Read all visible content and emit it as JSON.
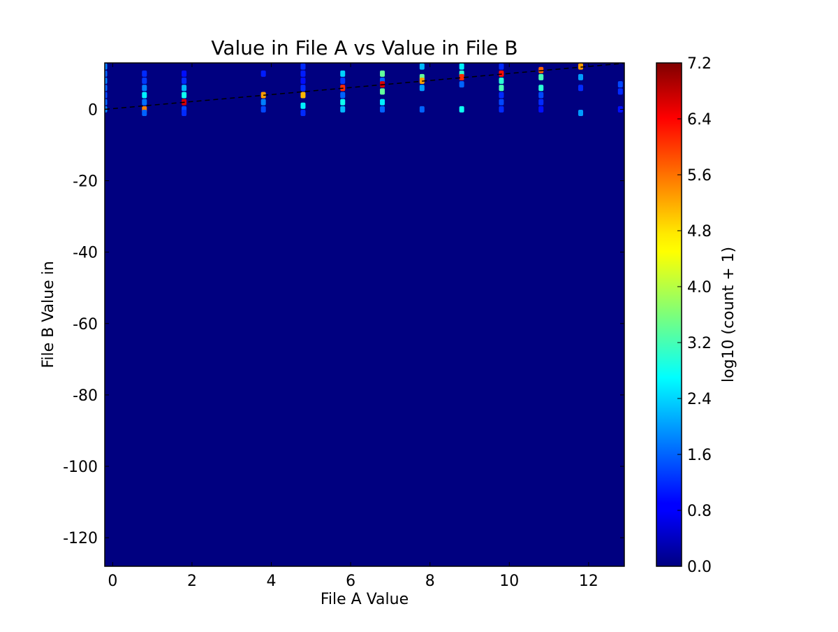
{
  "chart_data": {
    "type": "heatmap",
    "title": "Value in File A vs Value in File B",
    "xlabel": "File A Value",
    "ylabel": "File B Value in",
    "xlim": [
      -0.2,
      12.9
    ],
    "ylim": [
      -128,
      13
    ],
    "x_ticks": [
      0,
      2,
      4,
      6,
      8,
      10,
      12
    ],
    "y_ticks": [
      0,
      -20,
      -40,
      -60,
      -80,
      -100,
      -120
    ],
    "x_tick_labels": [
      "0",
      "2",
      "4",
      "6",
      "8",
      "10",
      "12"
    ],
    "y_tick_labels": [
      "0",
      "-20",
      "-40",
      "-60",
      "-80",
      "-100",
      "-120"
    ],
    "background_value": 0.0,
    "colorbar": {
      "label": "log10 (count + 1)",
      "min": 0.0,
      "max": 7.2,
      "ticks": [
        0.0,
        0.8,
        1.6,
        2.4,
        3.2,
        4.0,
        4.8,
        5.6,
        6.4,
        7.2
      ],
      "tick_labels": [
        "0.0",
        "0.8",
        "1.6",
        "2.4",
        "3.2",
        "4.0",
        "4.8",
        "5.6",
        "6.4",
        "7.2"
      ],
      "colormap": "jet"
    },
    "reference_line": {
      "style": "dashed",
      "color": "#000000",
      "x": [
        -0.2,
        12.9
      ],
      "y": [
        0,
        12.9
      ]
    },
    "cells": [
      {
        "x": -0.2,
        "y": 12,
        "v": 1.8
      },
      {
        "x": -0.2,
        "y": 10,
        "v": 1.6
      },
      {
        "x": -0.2,
        "y": 8,
        "v": 1.8
      },
      {
        "x": -0.2,
        "y": 6,
        "v": 1.6
      },
      {
        "x": -0.2,
        "y": 4,
        "v": 1.4
      },
      {
        "x": -0.2,
        "y": 2,
        "v": 1.6
      },
      {
        "x": -0.2,
        "y": 0,
        "v": 1.8
      },
      {
        "x": 0.8,
        "y": 10,
        "v": 1.2
      },
      {
        "x": 0.8,
        "y": 8,
        "v": 1.3
      },
      {
        "x": 0.8,
        "y": 6,
        "v": 1.8
      },
      {
        "x": 0.8,
        "y": 4,
        "v": 2.6
      },
      {
        "x": 0.8,
        "y": 2,
        "v": 1.7
      },
      {
        "x": 0.8,
        "y": 0,
        "v": 5.4
      },
      {
        "x": 0.8,
        "y": -1,
        "v": 1.6
      },
      {
        "x": 1.8,
        "y": 10,
        "v": 1.0
      },
      {
        "x": 1.8,
        "y": 8,
        "v": 1.2
      },
      {
        "x": 1.8,
        "y": 6,
        "v": 2.2
      },
      {
        "x": 1.8,
        "y": 4,
        "v": 2.8
      },
      {
        "x": 1.8,
        "y": 2,
        "v": 6.6
      },
      {
        "x": 1.8,
        "y": 0,
        "v": 1.4
      },
      {
        "x": 1.8,
        "y": -1,
        "v": 1.2
      },
      {
        "x": 3.8,
        "y": 10,
        "v": 1.1
      },
      {
        "x": 3.8,
        "y": 4,
        "v": 5.2
      },
      {
        "x": 3.8,
        "y": 2,
        "v": 1.8
      },
      {
        "x": 3.8,
        "y": 0,
        "v": 1.4
      },
      {
        "x": 4.8,
        "y": 12,
        "v": 1.2
      },
      {
        "x": 4.8,
        "y": 10,
        "v": 1.1
      },
      {
        "x": 4.8,
        "y": 8,
        "v": 1.0
      },
      {
        "x": 4.8,
        "y": 6,
        "v": 1.2
      },
      {
        "x": 4.8,
        "y": 4,
        "v": 5.0
      },
      {
        "x": 4.8,
        "y": 1,
        "v": 2.6
      },
      {
        "x": 4.8,
        "y": -1,
        "v": 1.2
      },
      {
        "x": 5.8,
        "y": 10,
        "v": 2.4
      },
      {
        "x": 5.8,
        "y": 8,
        "v": 1.3
      },
      {
        "x": 5.8,
        "y": 6,
        "v": 6.0
      },
      {
        "x": 5.8,
        "y": 4,
        "v": 1.6
      },
      {
        "x": 5.8,
        "y": 2,
        "v": 2.8
      },
      {
        "x": 5.8,
        "y": 0,
        "v": 2.2
      },
      {
        "x": 6.8,
        "y": 10,
        "v": 3.4
      },
      {
        "x": 6.8,
        "y": 8,
        "v": 1.6
      },
      {
        "x": 6.8,
        "y": 7,
        "v": 6.6
      },
      {
        "x": 6.8,
        "y": 5,
        "v": 3.4
      },
      {
        "x": 6.8,
        "y": 2,
        "v": 2.6
      },
      {
        "x": 6.8,
        "y": 0,
        "v": 1.6
      },
      {
        "x": 7.8,
        "y": 12,
        "v": 2.2
      },
      {
        "x": 7.8,
        "y": 9,
        "v": 3.4
      },
      {
        "x": 7.8,
        "y": 8,
        "v": 5.2
      },
      {
        "x": 7.8,
        "y": 6,
        "v": 2.0
      },
      {
        "x": 7.8,
        "y": 0,
        "v": 1.6
      },
      {
        "x": 8.8,
        "y": 12,
        "v": 2.6
      },
      {
        "x": 8.8,
        "y": 10,
        "v": 3.0
      },
      {
        "x": 8.8,
        "y": 9,
        "v": 6.0
      },
      {
        "x": 8.8,
        "y": 7,
        "v": 1.6
      },
      {
        "x": 8.8,
        "y": 0,
        "v": 2.8
      },
      {
        "x": 9.8,
        "y": 12,
        "v": 1.2
      },
      {
        "x": 9.8,
        "y": 10,
        "v": 6.2
      },
      {
        "x": 9.8,
        "y": 8,
        "v": 3.0
      },
      {
        "x": 9.8,
        "y": 6,
        "v": 3.2
      },
      {
        "x": 9.8,
        "y": 4,
        "v": 1.2
      },
      {
        "x": 9.8,
        "y": 2,
        "v": 1.4
      },
      {
        "x": 9.8,
        "y": 0,
        "v": 1.2
      },
      {
        "x": 10.8,
        "y": 11,
        "v": 5.6
      },
      {
        "x": 10.8,
        "y": 9,
        "v": 3.2
      },
      {
        "x": 10.8,
        "y": 6,
        "v": 3.0
      },
      {
        "x": 10.8,
        "y": 4,
        "v": 1.4
      },
      {
        "x": 10.8,
        "y": 2,
        "v": 1.2
      },
      {
        "x": 10.8,
        "y": 0,
        "v": 1.0
      },
      {
        "x": 11.8,
        "y": 12,
        "v": 5.2
      },
      {
        "x": 11.8,
        "y": 9,
        "v": 2.0
      },
      {
        "x": 11.8,
        "y": 6,
        "v": 1.2
      },
      {
        "x": 11.8,
        "y": -1,
        "v": 2.0
      },
      {
        "x": 12.8,
        "y": 7,
        "v": 1.4
      },
      {
        "x": 12.8,
        "y": 5,
        "v": 1.2
      },
      {
        "x": 12.8,
        "y": 0,
        "v": 1.0
      }
    ]
  }
}
